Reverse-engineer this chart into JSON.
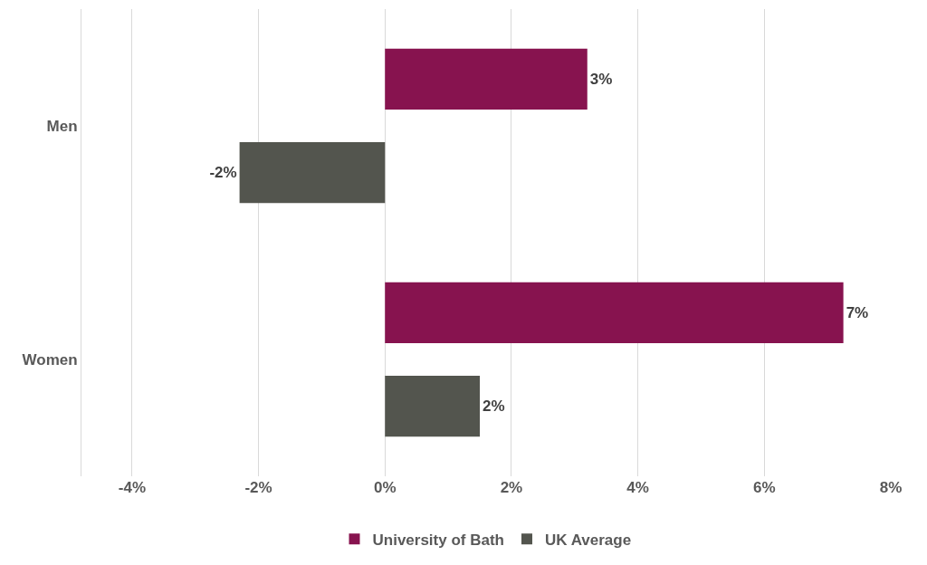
{
  "chart_data": {
    "type": "bar",
    "orientation": "horizontal",
    "categories": [
      "Men",
      "Women"
    ],
    "series": [
      {
        "name": "University of Bath",
        "color": "#87134f",
        "values": [
          3.2,
          7.25
        ],
        "value_labels": [
          "3%",
          "7%"
        ]
      },
      {
        "name": "UK Average",
        "color": "#53554e",
        "values": [
          -2.3,
          1.5
        ],
        "value_labels": [
          "-2%",
          "2%"
        ]
      }
    ],
    "xlim": [
      -4.8,
      8
    ],
    "xticks": [
      {
        "value": -4,
        "label": "-4%"
      },
      {
        "value": -2,
        "label": "-2%"
      },
      {
        "value": 0,
        "label": "0%"
      },
      {
        "value": 2,
        "label": "2%"
      },
      {
        "value": 4,
        "label": "4%"
      },
      {
        "value": 6,
        "label": "6%"
      },
      {
        "value": 8,
        "label": "8%"
      }
    ],
    "grid": "x",
    "legend": "bottom"
  }
}
